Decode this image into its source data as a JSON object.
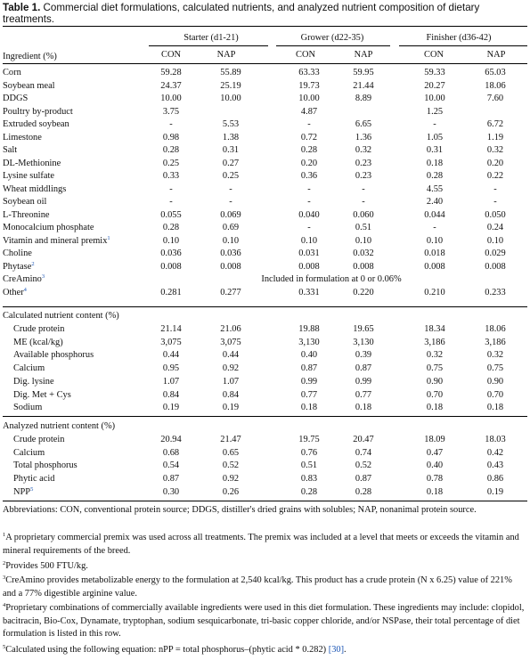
{
  "caption": {
    "label": "Table 1.",
    "text": "Commercial diet formulations, calculated nutrients, and analyzed nutrient composition of dietary treatments."
  },
  "header": {
    "ingredient_col": "Ingredient (%)",
    "groups": [
      "Starter (d1-21)",
      "Grower (d22-35)",
      "Finisher (d36-42)"
    ],
    "subcols": [
      "CON",
      "NAP",
      "CON",
      "NAP",
      "CON",
      "NAP"
    ]
  },
  "ingredients": [
    {
      "name": "Corn",
      "values": [
        "59.28",
        "55.89",
        "63.33",
        "59.95",
        "59.33",
        "65.03"
      ]
    },
    {
      "name": "Soybean meal",
      "values": [
        "24.37",
        "25.19",
        "19.73",
        "21.44",
        "20.27",
        "18.06"
      ]
    },
    {
      "name": "DDGS",
      "values": [
        "10.00",
        "10.00",
        "10.00",
        "8.89",
        "10.00",
        "7.60"
      ]
    },
    {
      "name": "Poultry by-product",
      "values": [
        "3.75",
        "",
        "4.87",
        "",
        "1.25",
        ""
      ]
    },
    {
      "name": "Extruded soybean",
      "values": [
        "-",
        "5.53",
        "-",
        "6.65",
        "-",
        "6.72"
      ]
    },
    {
      "name": "Limestone",
      "values": [
        "0.98",
        "1.38",
        "0.72",
        "1.36",
        "1.05",
        "1.19"
      ]
    },
    {
      "name": "Salt",
      "values": [
        "0.28",
        "0.31",
        "0.28",
        "0.32",
        "0.31",
        "0.32"
      ]
    },
    {
      "name": "DL-Methionine",
      "values": [
        "0.25",
        "0.27",
        "0.20",
        "0.23",
        "0.18",
        "0.20"
      ]
    },
    {
      "name": "Lysine sulfate",
      "values": [
        "0.33",
        "0.25",
        "0.36",
        "0.23",
        "0.28",
        "0.22"
      ]
    },
    {
      "name": "Wheat middlings",
      "values": [
        "-",
        "-",
        "-",
        "-",
        "4.55",
        "-"
      ]
    },
    {
      "name": "Soybean oil",
      "values": [
        "-",
        "-",
        "-",
        "-",
        "2.40",
        "-"
      ]
    },
    {
      "name": "L-Threonine",
      "values": [
        "0.055",
        "0.069",
        "0.040",
        "0.060",
        "0.044",
        "0.050"
      ]
    },
    {
      "name": "Monocalcium phosphate",
      "values": [
        "0.28",
        "0.69",
        "-",
        "0.51",
        "-",
        "0.24"
      ]
    },
    {
      "name": "Vitamin and mineral premix",
      "sup": "1",
      "values": [
        "0.10",
        "0.10",
        "0.10",
        "0.10",
        "0.10",
        "0.10"
      ]
    },
    {
      "name": "Choline",
      "values": [
        "0.036",
        "0.036",
        "0.031",
        "0.032",
        "0.018",
        "0.029"
      ]
    },
    {
      "name": "Phytase",
      "sup": "2",
      "values": [
        "0.008",
        "0.008",
        "0.008",
        "0.008",
        "0.008",
        "0.008"
      ]
    },
    {
      "name": "CreAmino",
      "sup": "3",
      "span": "Included in formulation at 0 or 0.06%"
    },
    {
      "name": "Other",
      "sup": "4",
      "values": [
        "0.281",
        "0.277",
        "0.331",
        "0.220",
        "0.210",
        "0.233"
      ]
    }
  ],
  "calculated": {
    "title": "Calculated nutrient content (%)",
    "rows": [
      {
        "name": "Crude protein",
        "values": [
          "21.14",
          "21.06",
          "19.88",
          "19.65",
          "18.34",
          "18.06"
        ]
      },
      {
        "name": "ME (kcal/kg)",
        "values": [
          "3,075",
          "3,075",
          "3,130",
          "3,130",
          "3,186",
          "3,186"
        ]
      },
      {
        "name": "Available phosphorus",
        "values": [
          "0.44",
          "0.44",
          "0.40",
          "0.39",
          "0.32",
          "0.32"
        ]
      },
      {
        "name": "Calcium",
        "values": [
          "0.95",
          "0.92",
          "0.87",
          "0.87",
          "0.75",
          "0.75"
        ]
      },
      {
        "name": "Dig. lysine",
        "values": [
          "1.07",
          "1.07",
          "0.99",
          "0.99",
          "0.90",
          "0.90"
        ]
      },
      {
        "name": "Dig. Met + Cys",
        "values": [
          "0.84",
          "0.84",
          "0.77",
          "0.77",
          "0.70",
          "0.70"
        ]
      },
      {
        "name": "Sodium",
        "values": [
          "0.19",
          "0.19",
          "0.18",
          "0.18",
          "0.18",
          "0.18"
        ]
      }
    ]
  },
  "analyzed": {
    "title": "Analyzed nutrient content (%)",
    "rows": [
      {
        "name": "Crude protein",
        "values": [
          "20.94",
          "21.47",
          "19.75",
          "20.47",
          "18.09",
          "18.03"
        ]
      },
      {
        "name": "Calcium",
        "values": [
          "0.68",
          "0.65",
          "0.76",
          "0.74",
          "0.47",
          "0.42"
        ]
      },
      {
        "name": "Total phosphorus",
        "values": [
          "0.54",
          "0.52",
          "0.51",
          "0.52",
          "0.40",
          "0.43"
        ]
      },
      {
        "name": "Phytic acid",
        "values": [
          "0.87",
          "0.92",
          "0.83",
          "0.87",
          "0.78",
          "0.86"
        ]
      },
      {
        "name": "NPP",
        "sup": "5",
        "values": [
          "0.30",
          "0.26",
          "0.28",
          "0.28",
          "0.18",
          "0.19"
        ]
      }
    ]
  },
  "footnotes": {
    "abbreviations": "Abbreviations: CON, conventional protein source; DDGS, distiller's dried grains with solubles; NAP, nonanimal protein source.",
    "n1": "A proprietary commercial premix was used across all treatments. The premix was included at a level that meets or exceeds the vitamin and mineral requirements of the breed.",
    "n2": "Provides 500 FTU/kg.",
    "n3": "CreAmino provides metabolizable energy to the formulation at 2,540 kcal/kg. This product has a crude protein (N x 6.25) value of 221% and a 77% digestible arginine value.",
    "n4": "Proprietary combinations of commercially available ingredients were used in this diet formulation. These ingredients may include: clopidol, bacitracin, Bio-Cox, Dynamate, tryptophan, sodium sesquicarbonate, tri-basic copper chloride, and/or NSPase, their total percentage of diet formulation is listed in this row.",
    "n5_text": "Calculated using the following equation: nPP = total phosphorus–(phytic acid * 0.282)",
    "n5_ref": "[30]",
    "n5_end": "."
  }
}
